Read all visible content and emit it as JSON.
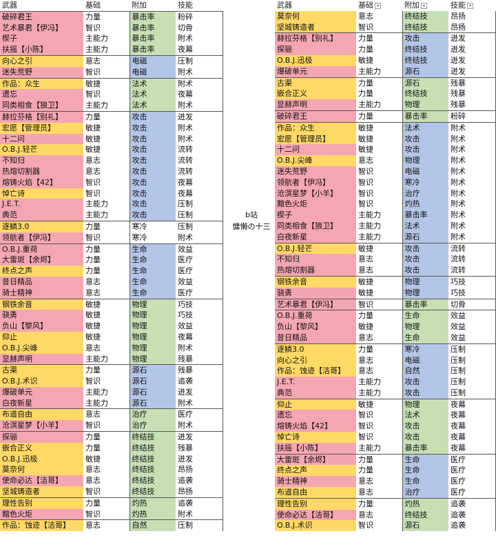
{
  "center_text": {
    "line1": "b站",
    "line2": "慵懒の十三"
  },
  "headers": [
    "武器",
    "基础",
    "附加",
    "技能"
  ],
  "colors": {
    "pink": "#f4a6b2",
    "yellow": "#ffd966",
    "green": "#c6e0b4",
    "blue": "#b4c6e7"
  },
  "left_rows": [
    [
      "破碎君王",
      "力量",
      "暴击率",
      "粉碎",
      "pink",
      "green",
      1
    ],
    [
      "艺术暴君【伊冯】",
      "智识",
      "暴击率",
      "切骨",
      "pink",
      "green",
      0
    ],
    [
      "楔子",
      "主能力",
      "暴击率",
      "附术",
      "pink",
      "green",
      0
    ],
    [
      "扶摇【小陈】",
      "主能力",
      "暴击率",
      "夜幕",
      "pink",
      "green",
      0
    ],
    [
      "向心之引",
      "意志",
      "电磁",
      "压制",
      "yellow",
      "blue",
      1
    ],
    [
      "迷失荒野",
      "智识",
      "电磁",
      "附术",
      "pink",
      "blue",
      0
    ],
    [
      "作品：众生",
      "敏捷",
      "法术",
      "附术",
      "yellow",
      "green",
      1
    ],
    [
      "遗忘",
      "智识",
      "法术",
      "夜幕",
      "pink",
      "green",
      0
    ],
    [
      "同类相食【狼卫】",
      "主能力",
      "法术",
      "附术",
      "pink",
      "green",
      0
    ],
    [
      "赫拉芬格【别礼】",
      "力量",
      "攻击",
      "迸发",
      "pink",
      "blue",
      1
    ],
    [
      "宏愿【管理员】",
      "敏捷",
      "攻击",
      "附术",
      "yellow",
      "blue",
      0,
      1
    ],
    [
      "十二问",
      "敏捷",
      "攻击",
      "附术",
      "pink",
      "blue",
      0
    ],
    [
      "O.B.J.轻芒",
      "敏捷",
      "攻击",
      "流转",
      "yellow",
      "blue",
      0
    ],
    [
      "不知归",
      "意志",
      "攻击",
      "流转",
      "pink",
      "blue",
      0
    ],
    [
      "热熔切割器",
      "意志",
      "攻击",
      "流转",
      "pink",
      "blue",
      0
    ],
    [
      "熔铸火焰【42】",
      "智识",
      "攻击",
      "夜幕",
      "pink",
      "blue",
      0
    ],
    [
      "悼亡诗",
      "智识",
      "攻击",
      "夜幕",
      "yellow",
      "blue",
      0
    ],
    [
      "J.E.T.",
      "主能力",
      "攻击",
      "压制",
      "pink",
      "blue",
      0
    ],
    [
      "典范",
      "主能力",
      "攻击",
      "压制",
      "pink",
      "blue",
      0
    ],
    [
      "逐鳞3.0",
      "力量",
      "寒冷",
      "压制",
      "yellow",
      "white",
      1
    ],
    [
      "领航者【伊冯】",
      "智识",
      "寒冷",
      "附术",
      "pink",
      "white",
      0
    ],
    [
      "O.B.J.重荷",
      "力量",
      "生命",
      "效益",
      "pink",
      "blue",
      1
    ],
    [
      "大雷斑【余烬】",
      "力量",
      "生命",
      "医疗",
      "pink",
      "blue",
      0
    ],
    [
      "终点之声",
      "力量",
      "生命",
      "医疗",
      "yellow",
      "blue",
      0
    ],
    [
      "昔日精品",
      "意志",
      "生命",
      "效益",
      "pink",
      "blue",
      0
    ],
    [
      "骑士精神",
      "意志",
      "生命",
      "医疗",
      "pink",
      "blue",
      0
    ],
    [
      "钢铁余音",
      "敏捷",
      "物理",
      "巧技",
      "yellow",
      "green",
      1,
      1
    ],
    [
      "骁勇",
      "敏捷",
      "物理",
      "巧技",
      "pink",
      "green",
      0
    ],
    [
      "负山【黎风】",
      "敏捷",
      "物理",
      "效益",
      "pink",
      "green",
      0
    ],
    [
      "仰止",
      "敏捷",
      "物理",
      "夜幕",
      "yellow",
      "green",
      0
    ],
    [
      "O.B.J.尖峰",
      "意志",
      "物理",
      "附术",
      "yellow",
      "green",
      0
    ],
    [
      "显赫声明",
      "主能力",
      "物理",
      "残暴",
      "pink",
      "green",
      0
    ],
    [
      "古渠",
      "力量",
      "源石",
      "残暴",
      "yellow",
      "blue",
      1
    ],
    [
      "O.B.J.术识",
      "智识",
      "源石",
      "追袭",
      "yellow",
      "blue",
      0
    ],
    [
      "爆破单元",
      "主能力",
      "源石",
      "迸发",
      "pink",
      "blue",
      0
    ],
    [
      "白夜新星",
      "主能力",
      "源石",
      "附术",
      "pink",
      "blue",
      0
    ],
    [
      "布道自由",
      "意志",
      "治疗",
      "医疗",
      "yellow",
      "green",
      1
    ],
    [
      "沧溟星梦【小羊】",
      "智识",
      "治疗",
      "附术",
      "pink",
      "green",
      0
    ],
    [
      "探骊",
      "力量",
      "终结技",
      "迸发",
      "pink",
      "green",
      1
    ],
    [
      "嵌合正义",
      "力量",
      "终结技",
      "残暴",
      "yellow",
      "green",
      0
    ],
    [
      "O.B.J.迅极",
      "敏捷",
      "终结技",
      "迸发",
      "yellow",
      "green",
      0
    ],
    [
      "莫奈何",
      "意志",
      "终结技",
      "昂扬",
      "yellow",
      "green",
      0
    ],
    [
      "使命必达【洁哥】",
      "意志",
      "终结技",
      "追袭",
      "pink",
      "green",
      0
    ],
    [
      "坚城铸造者",
      "智识",
      "终结技",
      "昂扬",
      "yellow",
      "green",
      0
    ],
    [
      "理性告别",
      "力量",
      "灼热",
      "追袭",
      "yellow",
      "green",
      1
    ],
    [
      "黯色火炬",
      "智识",
      "灼热",
      "附术",
      "pink",
      "green",
      0
    ],
    [
      "作品：蚀迹【洁哥】",
      "意志",
      "自然",
      "压制",
      "yellow",
      "green",
      1
    ]
  ],
  "right_rows": [
    [
      "莫奈何",
      "意志",
      "终结技",
      "昂扬",
      "yellow",
      "green",
      0
    ],
    [
      "坚城铸造者",
      "智识",
      "终结技",
      "昂扬",
      "yellow",
      "green",
      0
    ],
    [
      "赫拉芬格【别礼】",
      "力量",
      "攻击",
      "迸发",
      "pink",
      "blue",
      1
    ],
    [
      "探骊",
      "力量",
      "终结技",
      "迸发",
      "pink",
      "blue",
      0
    ],
    [
      "O.B.J.迅极",
      "敏捷",
      "终结技",
      "迸发",
      "yellow",
      "blue",
      0
    ],
    [
      "爆破单元",
      "主能力",
      "源石",
      "迸发",
      "pink",
      "blue",
      0
    ],
    [
      "古渠",
      "力量",
      "源石",
      "残暴",
      "yellow",
      "green",
      1
    ],
    [
      "嵌合正义",
      "力量",
      "终结技",
      "残暴",
      "yellow",
      "green",
      0
    ],
    [
      "显赫声明",
      "主能力",
      "物理",
      "残暴",
      "pink",
      "green",
      0
    ],
    [
      "破碎君王",
      "力量",
      "暴击率",
      "粉碎",
      "pink",
      "green",
      1
    ],
    [
      "作品：众生",
      "敏捷",
      "法术",
      "附术",
      "yellow",
      "blue",
      1
    ],
    [
      "宏愿【管理员】",
      "敏捷",
      "攻击",
      "附术",
      "yellow",
      "blue",
      0,
      1
    ],
    [
      "十二问",
      "敏捷",
      "攻击",
      "附术",
      "pink",
      "blue",
      0
    ],
    [
      "O.B.J.尖峰",
      "意志",
      "物理",
      "附术",
      "yellow",
      "blue",
      0
    ],
    [
      "迷失荒野",
      "智识",
      "电磁",
      "附术",
      "pink",
      "blue",
      0
    ],
    [
      "领航者【伊冯】",
      "智识",
      "寒冷",
      "附术",
      "pink",
      "blue",
      0
    ],
    [
      "沧溟星梦【小羊】",
      "智识",
      "治疗",
      "附术",
      "pink",
      "blue",
      0
    ],
    [
      "黯色火炬",
      "智识",
      "灼热",
      "附术",
      "pink",
      "blue",
      0
    ],
    [
      "楔子",
      "主能力",
      "暴击率",
      "附术",
      "pink",
      "blue",
      0
    ],
    [
      "同类相食【狼卫】",
      "主能力",
      "法术",
      "附术",
      "pink",
      "blue",
      0
    ],
    [
      "白夜新星",
      "主能力",
      "源石",
      "附术",
      "pink",
      "blue",
      0
    ],
    [
      "O.B.J.轻芒",
      "敏捷",
      "攻击",
      "流转",
      "yellow",
      "blue",
      1
    ],
    [
      "不知归",
      "意志",
      "攻击",
      "流转",
      "pink",
      "blue",
      0
    ],
    [
      "热熔切割器",
      "意志",
      "攻击",
      "流转",
      "pink",
      "blue",
      0
    ],
    [
      "钢铁余音",
      "敏捷",
      "物理",
      "巧技",
      "yellow",
      "blue",
      1,
      1
    ],
    [
      "骁勇",
      "敏捷",
      "物理",
      "巧技",
      "pink",
      "blue",
      0
    ],
    [
      "艺术暴君【伊冯】",
      "智识",
      "暴击率",
      "切骨",
      "pink",
      "green",
      1
    ],
    [
      "O.B.J.重荷",
      "力量",
      "生命",
      "效益",
      "pink",
      "green",
      1
    ],
    [
      "负山【黎风】",
      "敏捷",
      "物理",
      "效益",
      "pink",
      "green",
      0
    ],
    [
      "昔日精品",
      "意志",
      "生命",
      "效益",
      "pink",
      "green",
      0
    ],
    [
      "逐鳞3.0",
      "力量",
      "寒冷",
      "压制",
      "yellow",
      "blue",
      1
    ],
    [
      "向心之引",
      "意志",
      "电磁",
      "压制",
      "yellow",
      "blue",
      0
    ],
    [
      "作品：蚀迹【洁哥】",
      "意志",
      "自然",
      "压制",
      "yellow",
      "blue",
      0
    ],
    [
      "J.E.T.",
      "主能力",
      "攻击",
      "压制",
      "pink",
      "blue",
      0
    ],
    [
      "典范",
      "主能力",
      "攻击",
      "压制",
      "pink",
      "blue",
      0
    ],
    [
      "仰止",
      "敏捷",
      "物理",
      "夜幕",
      "yellow",
      "green",
      1
    ],
    [
      "遗忘",
      "智识",
      "法术",
      "夜幕",
      "pink",
      "green",
      0
    ],
    [
      "熔铸火焰【42】",
      "智识",
      "攻击",
      "夜幕",
      "pink",
      "green",
      0
    ],
    [
      "悼亡诗",
      "智识",
      "攻击",
      "夜幕",
      "yellow",
      "green",
      0
    ],
    [
      "扶摇【小陈】",
      "主能力",
      "暴击率",
      "夜幕",
      "pink",
      "green",
      0
    ],
    [
      "大雷斑【余烬】",
      "力量",
      "生命",
      "医疗",
      "pink",
      "blue",
      1
    ],
    [
      "终点之声",
      "力量",
      "生命",
      "医疗",
      "yellow",
      "blue",
      0
    ],
    [
      "骑士精神",
      "意志",
      "生命",
      "医疗",
      "pink",
      "blue",
      0
    ],
    [
      "布道自由",
      "意志",
      "治疗",
      "医疗",
      "yellow",
      "blue",
      0
    ],
    [
      "理性告别",
      "力量",
      "灼热",
      "追袭",
      "yellow",
      "green",
      1
    ],
    [
      "使命必达【洁哥】",
      "意志",
      "终结技",
      "追袭",
      "pink",
      "green",
      0
    ],
    [
      "O.B.J.术识",
      "智识",
      "源石",
      "追袭",
      "yellow",
      "green",
      0
    ]
  ]
}
